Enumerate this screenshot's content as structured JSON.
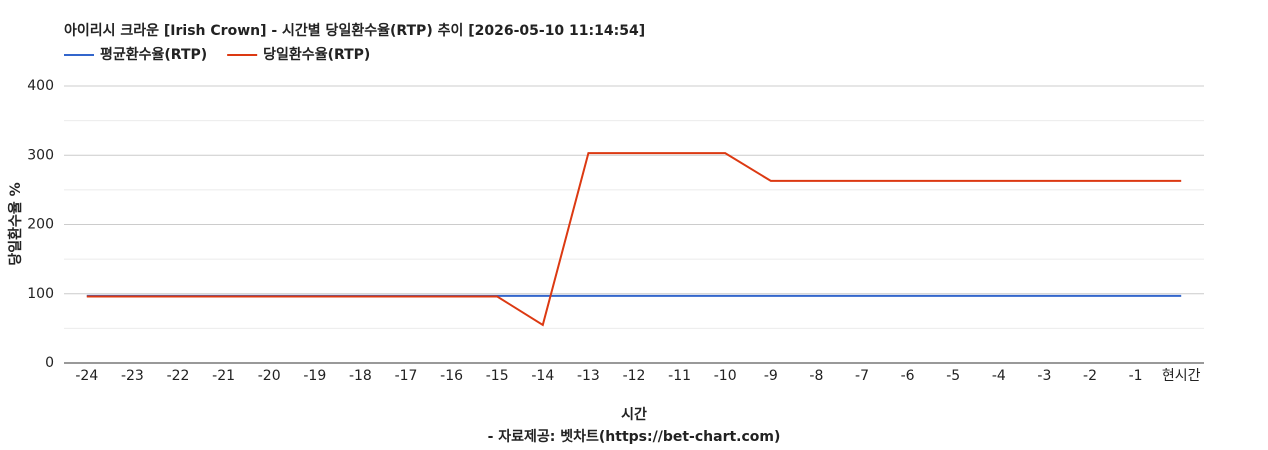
{
  "chart_data": {
    "type": "line",
    "title": "아이리시 크라운 [Irish Crown] - 시간별 당일환수율(RTP) 추이 [2026-05-10 11:14:54]",
    "x_label": "시간",
    "y_label": "당일환수율 %",
    "source": "- 자료제공: 벳차트(https://bet-chart.com)",
    "categories": [
      "-24",
      "-23",
      "-22",
      "-21",
      "-20",
      "-19",
      "-18",
      "-17",
      "-16",
      "-15",
      "-14",
      "-13",
      "-12",
      "-11",
      "-10",
      "-9",
      "-8",
      "-7",
      "-6",
      "-5",
      "-4",
      "-3",
      "-2",
      "-1",
      "현시간"
    ],
    "series": [
      {
        "name": "평균환수율(RTP)",
        "color": "#3366cc",
        "values": [
          97,
          97,
          97,
          97,
          97,
          97,
          97,
          97,
          97,
          97,
          97,
          97,
          97,
          97,
          97,
          97,
          97,
          97,
          97,
          97,
          97,
          97,
          97,
          97,
          97
        ]
      },
      {
        "name": "당일환수율(RTP)",
        "color": "#dc3912",
        "values": [
          96,
          96,
          96,
          96,
          96,
          96,
          96,
          96,
          96,
          96,
          55,
          303,
          303,
          303,
          303,
          263,
          263,
          263,
          263,
          263,
          263,
          263,
          263,
          263,
          263
        ]
      }
    ],
    "ylim": [
      0,
      400
    ],
    "yticks": [
      0,
      100,
      200,
      300,
      400
    ],
    "minor_yticks": [
      50,
      150,
      250,
      350
    ],
    "grid": true,
    "legend": "top-left"
  }
}
